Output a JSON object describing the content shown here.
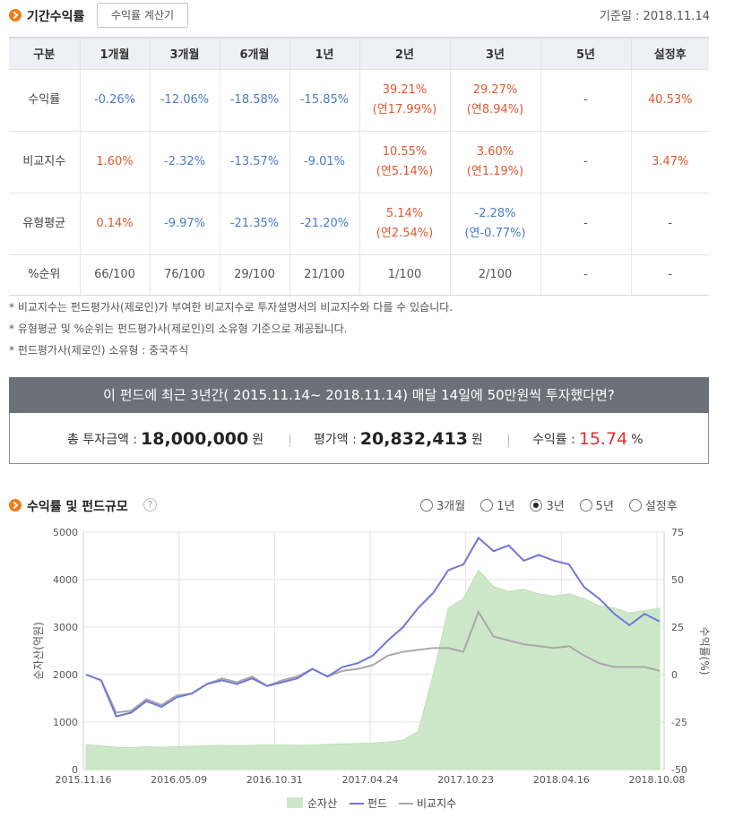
{
  "period_returns": {
    "title": "기간수익률",
    "calc_button": "수익률 계산기",
    "base_date": "기준일 : 2018.11.14",
    "headers": [
      "구분",
      "1개월",
      "3개월",
      "6개월",
      "1년",
      "2년",
      "3년",
      "5년",
      "설정후"
    ],
    "rows": [
      {
        "label": "수익률",
        "cells": [
          [
            "-0.26%",
            ""
          ],
          [
            "-12.06%",
            ""
          ],
          [
            "-18.58%",
            ""
          ],
          [
            "-15.85%",
            ""
          ],
          [
            "39.21%",
            "(연17.99%)"
          ],
          [
            "29.27%",
            "(연8.94%)"
          ],
          [
            "-",
            ""
          ],
          [
            "40.53%",
            ""
          ]
        ],
        "tones": [
          "neg",
          "neg",
          "neg",
          "neg",
          "pos",
          "pos",
          "neu",
          "pos"
        ]
      },
      {
        "label": "비교지수",
        "cells": [
          [
            "1.60%",
            ""
          ],
          [
            "-2.32%",
            ""
          ],
          [
            "-13.57%",
            ""
          ],
          [
            "-9.01%",
            ""
          ],
          [
            "10.55%",
            "(연5.14%)"
          ],
          [
            "3.60%",
            "(연1.19%)"
          ],
          [
            "-",
            ""
          ],
          [
            "3.47%",
            ""
          ]
        ],
        "tones": [
          "pos",
          "neg",
          "neg",
          "neg",
          "pos",
          "pos",
          "neu",
          "pos"
        ]
      },
      {
        "label": "유형평균",
        "cells": [
          [
            "0.14%",
            ""
          ],
          [
            "-9.97%",
            ""
          ],
          [
            "-21.35%",
            ""
          ],
          [
            "-21.20%",
            ""
          ],
          [
            "5.14%",
            "(연2.54%)"
          ],
          [
            "-2.28%",
            "(연-0.77%)"
          ],
          [
            "-",
            ""
          ],
          [
            "-",
            ""
          ]
        ],
        "tones": [
          "pos",
          "neg",
          "neg",
          "neg",
          "pos",
          "neg",
          "neu",
          "neu"
        ]
      },
      {
        "label": "%순위",
        "cells": [
          [
            "66/100",
            ""
          ],
          [
            "76/100",
            ""
          ],
          [
            "29/100",
            ""
          ],
          [
            "21/100",
            ""
          ],
          [
            "1/100",
            ""
          ],
          [
            "2/100",
            ""
          ],
          [
            "-",
            ""
          ],
          [
            "-",
            ""
          ]
        ],
        "tones": [
          "neu",
          "neu",
          "neu",
          "neu",
          "neu",
          "neu",
          "neu",
          "neu"
        ]
      }
    ],
    "notes": [
      "* 비교지수는 펀드평가사(제로인)가 부여한 비교지수로 투자설명서의 비교지수와 다를 수 있습니다.",
      "* 유형평균 및 %순위는 펀드평가사(제로인)의 소유형 기준으로 제공됩니다.",
      "* 펀드평가사(제로인) 소유형 : 중국주식"
    ]
  },
  "invest_sim": {
    "headline": "이 펀드에 최근 3년간( 2015.11.14~ 2018.11.14) 매달 14일에 50만원씩 투자했다면?",
    "total_label": "총 투자금액 :",
    "total_value": "18,000,000",
    "total_unit": "원",
    "eval_label": "평가액 :",
    "eval_value": "20,832,413",
    "eval_unit": "원",
    "return_label": "수익률 :",
    "return_value": "15.74",
    "return_unit": "%"
  },
  "chart_section": {
    "title": "수익률 및 펀드규모",
    "help_icon": "question-icon",
    "periods": [
      {
        "label": "3개월",
        "selected": false
      },
      {
        "label": "1년",
        "selected": false
      },
      {
        "label": "3년",
        "selected": true
      },
      {
        "label": "5년",
        "selected": false
      },
      {
        "label": "설정후",
        "selected": false
      }
    ]
  },
  "chart_data": {
    "type": "area",
    "xlabel": "",
    "ylabel": "순자산(억원)",
    "ylabel_right": "수익률(%)",
    "x_ticks": [
      "2015.11.16",
      "2016.05.09",
      "2016.10.31",
      "2017.04.24",
      "2017.10.23",
      "2018.04.16",
      "2018.10.08"
    ],
    "ylim": [
      0,
      5000
    ],
    "y_ticks": [
      0,
      1000,
      2000,
      3000,
      4000,
      5000
    ],
    "ylim_right": [
      -50,
      75
    ],
    "y_ticks_right": [
      -50,
      -25,
      0,
      25,
      50,
      75
    ],
    "grid": true,
    "legend": "bottom",
    "colors": {
      "net_assets": "#cde8c8",
      "fund": "#6f78d8",
      "benchmark": "#a9a9a9"
    },
    "series": [
      {
        "name": "순자산",
        "axis": "left",
        "values": [
          520,
          500,
          470,
          460,
          480,
          470,
          480,
          490,
          500,
          510,
          500,
          510,
          520,
          520,
          510,
          520,
          530,
          540,
          550,
          560,
          580,
          620,
          800,
          2000,
          3400,
          3600,
          4200,
          3850,
          3750,
          3800,
          3700,
          3650,
          3700,
          3600,
          3450,
          3400,
          3300,
          3350,
          3400
        ]
      },
      {
        "name": "펀드",
        "axis": "right",
        "values": [
          0,
          -3,
          -22,
          -20,
          -14,
          -17,
          -12,
          -10,
          -5,
          -3,
          -5,
          -2,
          -6,
          -4,
          -2,
          3,
          -1,
          4,
          6,
          10,
          18,
          25,
          35,
          43,
          55,
          58,
          72,
          65,
          68,
          60,
          63,
          60,
          58,
          46,
          40,
          32,
          26,
          32,
          28
        ]
      },
      {
        "name": "비교지수",
        "axis": "right",
        "values": [
          0,
          -3,
          -20,
          -19,
          -13,
          -16,
          -11,
          -10,
          -5,
          -2,
          -4,
          -1,
          -6,
          -3,
          -1,
          3,
          -1,
          2,
          3,
          5,
          10,
          12,
          13,
          14,
          14,
          12,
          33,
          20,
          18,
          16,
          15,
          14,
          15,
          10,
          6,
          4,
          4,
          4,
          2
        ]
      }
    ]
  }
}
